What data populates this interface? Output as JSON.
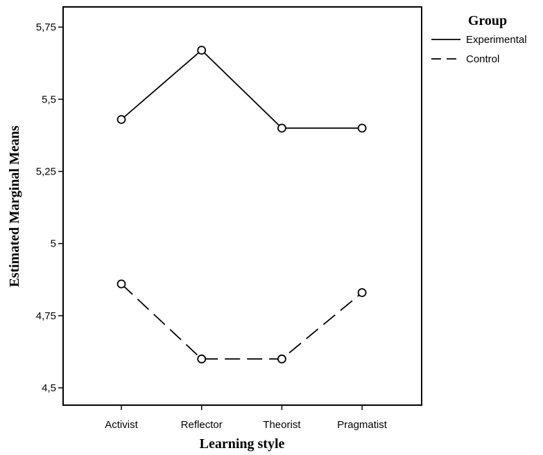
{
  "chart_data": {
    "type": "line",
    "xlabel": "Learning style",
    "ylabel": "Estimated Marginal Means",
    "categories": [
      "Activist",
      "Reflector",
      "Theorist",
      "Pragmatist"
    ],
    "ylim": [
      4.44,
      5.82
    ],
    "yticks": [
      4.5,
      4.75,
      5,
      5.25,
      5.5,
      5.75
    ],
    "ytick_labels": [
      "4,5",
      "4,75",
      "5",
      "5,25",
      "5,5",
      "5,75"
    ],
    "legend": {
      "title": "Group",
      "position": "right, outside plot"
    },
    "grid": false,
    "series": [
      {
        "name": "Experimental",
        "style": "solid",
        "marker": "open-circle",
        "values": [
          5.43,
          5.67,
          5.4,
          5.4
        ]
      },
      {
        "name": "Control",
        "style": "dashed",
        "marker": "open-circle",
        "values": [
          4.86,
          4.6,
          4.6,
          4.83
        ]
      }
    ]
  },
  "colors": {
    "line": "#000000",
    "background": "#ffffff"
  }
}
